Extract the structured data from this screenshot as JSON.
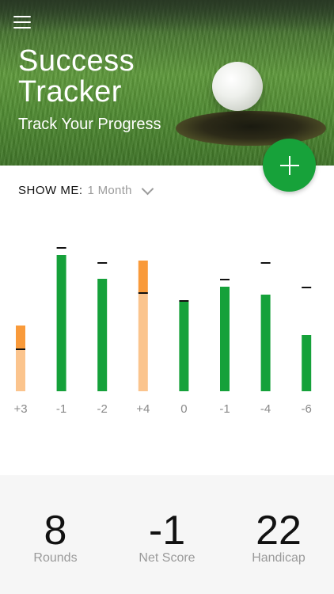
{
  "header": {
    "title_line1": "Success",
    "title_line2": "Tracker",
    "subtitle": "Track Your Progress",
    "menu_icon": "hamburger-menu-icon",
    "add_icon": "plus-icon"
  },
  "filter": {
    "label": "SHOW ME:",
    "value": "1 Month",
    "icon": "chevron-down-icon"
  },
  "colors": {
    "over": "#f99a3a",
    "over_light": "#fbc48d",
    "under": "#15a13a",
    "accent": "#17a23a"
  },
  "chart_data": {
    "type": "bar",
    "categories": [
      "+3",
      "-1",
      "-2",
      "+4",
      "0",
      "-1",
      "-4",
      "-6"
    ],
    "series": [
      {
        "values": [
          83,
          172,
          142,
          165,
          113,
          132,
          122,
          71
        ]
      }
    ],
    "markers": [
      53,
      181,
      162,
      124,
      114,
      141,
      162,
      131
    ],
    "status": [
      "over",
      "under",
      "under",
      "over",
      "under",
      "under",
      "under",
      "under"
    ]
  },
  "stats": [
    {
      "value": "8",
      "label": "Rounds"
    },
    {
      "value": "-1",
      "label": "Net Score"
    },
    {
      "value": "22",
      "label": "Handicap"
    }
  ]
}
